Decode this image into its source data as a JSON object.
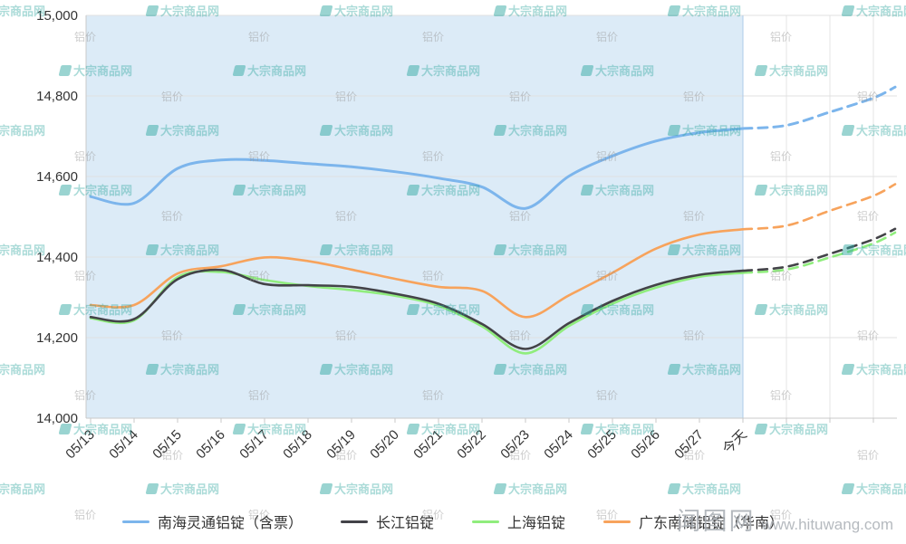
{
  "watermark": {
    "brand": "大宗商品网",
    "tag": "铝价"
  },
  "photo_watermark": {
    "site": "闻图网",
    "url": "www.hituwang.com"
  },
  "chart_data": {
    "type": "line",
    "title": "",
    "xlabel": "",
    "ylabel": "",
    "ylim": [
      14000,
      15000
    ],
    "y_ticks": [
      14000,
      14200,
      14400,
      14600,
      14800,
      15000
    ],
    "grid": true,
    "legend_position": "bottom",
    "plot_band": {
      "from": "05/13",
      "to": "今天",
      "color": "#dcebf7"
    },
    "forecast_style": "dashed-after-今天",
    "categories": [
      "05/13",
      "05/14",
      "05/15",
      "05/16",
      "05/17",
      "05/18",
      "05/19",
      "05/20",
      "05/21",
      "05/22",
      "05/23",
      "05/24",
      "05/25",
      "05/26",
      "05/27",
      "今天"
    ],
    "series": [
      {
        "name": "南海灵通铝锭（含票）",
        "color": "#7cb5ec",
        "values": [
          14550,
          14534,
          14620,
          14641,
          14640,
          14632,
          14624,
          14612,
          14596,
          14574,
          14521,
          14601,
          14651,
          14688,
          14709,
          14719
        ],
        "forecast": [
          14727,
          14760,
          14795,
          14822
        ]
      },
      {
        "name": "长江铝锭",
        "color": "#434348",
        "values": [
          14251,
          14246,
          14345,
          14368,
          14333,
          14330,
          14326,
          14309,
          14284,
          14234,
          14172,
          14236,
          14291,
          14331,
          14356,
          14366
        ],
        "forecast": [
          14376,
          14408,
          14444,
          14470
        ]
      },
      {
        "name": "上海铝锭",
        "color": "#90ed7d",
        "values": [
          14248,
          14243,
          14350,
          14363,
          14343,
          14328,
          14318,
          14304,
          14279,
          14228,
          14161,
          14229,
          14284,
          14324,
          14351,
          14361
        ],
        "forecast": [
          14369,
          14399,
          14434,
          14461
        ]
      },
      {
        "name": "广东南储铝锭（华南）",
        "color": "#f7a35c",
        "values": [
          14281,
          14281,
          14359,
          14377,
          14399,
          14390,
          14369,
          14346,
          14326,
          14316,
          14251,
          14305,
          14361,
          14421,
          14456,
          14469
        ],
        "forecast": [
          14478,
          14515,
          14552,
          14581
        ]
      }
    ]
  }
}
